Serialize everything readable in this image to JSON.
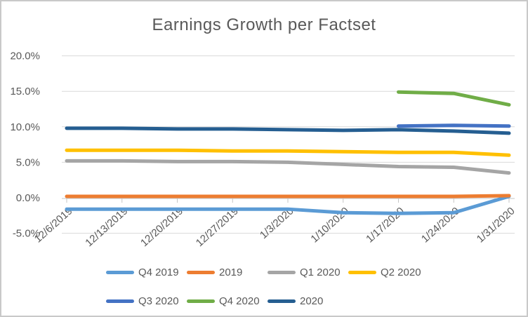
{
  "chart_data": {
    "type": "line",
    "title": "Earnings Growth per Factset",
    "categories": [
      "12/6/2019",
      "12/13/2019",
      "12/20/2019",
      "12/27/2019",
      "1/3/2020",
      "1/10/2020",
      "1/17/2020",
      "1/24/2020",
      "1/31/2020"
    ],
    "series": [
      {
        "name": "Q4 2019",
        "color": "#5B9BD5",
        "values": [
          -1.6,
          -1.6,
          -1.6,
          -1.6,
          -1.6,
          -2.1,
          -2.2,
          -2.1,
          0.2
        ]
      },
      {
        "name": "2019",
        "color": "#ED7D31",
        "values": [
          0.2,
          0.2,
          0.2,
          0.2,
          0.2,
          0.2,
          0.2,
          0.2,
          0.3
        ]
      },
      {
        "name": "Q1 2020",
        "color": "#A5A5A5",
        "values": [
          5.2,
          5.2,
          5.1,
          5.1,
          5.0,
          4.7,
          4.4,
          4.3,
          3.5
        ]
      },
      {
        "name": "Q2 2020",
        "color": "#FFC000",
        "values": [
          6.7,
          6.7,
          6.7,
          6.6,
          6.6,
          6.5,
          6.4,
          6.4,
          6.0
        ]
      },
      {
        "name": "Q3 2020",
        "color": "#4472C4",
        "values": [
          null,
          null,
          null,
          null,
          null,
          null,
          10.1,
          10.2,
          10.1
        ]
      },
      {
        "name": "Q4 2020",
        "color": "#70AD47",
        "values": [
          null,
          null,
          null,
          null,
          null,
          null,
          14.9,
          14.7,
          13.1
        ]
      },
      {
        "name": "2020",
        "color": "#255E91",
        "values": [
          9.8,
          9.8,
          9.7,
          9.7,
          9.6,
          9.5,
          9.6,
          9.4,
          9.1
        ]
      }
    ],
    "ylim": [
      -5,
      20
    ],
    "yticks": [
      {
        "label": "20.0%",
        "value": 20
      },
      {
        "label": "15.0%",
        "value": 15
      },
      {
        "label": "10.0%",
        "value": 10
      },
      {
        "label": "5.0%",
        "value": 5
      },
      {
        "label": "0.0%",
        "value": 0
      },
      {
        "label": "-5.0%",
        "value": -5
      }
    ],
    "grid": "horizontal",
    "legend_position": "bottom",
    "legend_rows": [
      [
        "Q4 2019",
        "2019",
        "Q1 2020",
        "Q2 2020"
      ],
      [
        "Q3 2020",
        "Q4 2020",
        "2020"
      ]
    ]
  },
  "colors": {
    "title_text": "#595959",
    "axis_text": "#595959",
    "gridline": "#D9D9D9",
    "axis_line": "#C6C6C6",
    "frame_border": "#C9C9C9"
  }
}
